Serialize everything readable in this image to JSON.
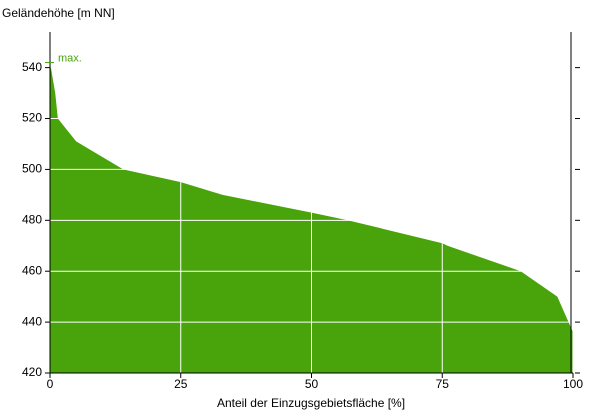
{
  "chart_data": {
    "type": "area",
    "y_label": "Geländehöhe [m NN]",
    "x_label": "Anteil der Einzugsgebietsfläche [%]",
    "x": [
      0,
      1,
      1.5,
      5,
      14,
      25,
      33,
      50,
      57,
      75,
      76,
      90,
      97,
      100
    ],
    "values": [
      542,
      530,
      520,
      511,
      500,
      495,
      490,
      483,
      480,
      471,
      470,
      460,
      450,
      436
    ],
    "color": "#48a40a",
    "xlim": [
      0,
      100
    ],
    "xticks": [
      0,
      25,
      50,
      75,
      100
    ],
    "ylim": [
      420,
      554
    ],
    "yticks": [
      420,
      440,
      460,
      480,
      500,
      520,
      540
    ],
    "grid": true,
    "annotation": {
      "text": "max.",
      "value": 542,
      "color": "#48a40a"
    }
  }
}
